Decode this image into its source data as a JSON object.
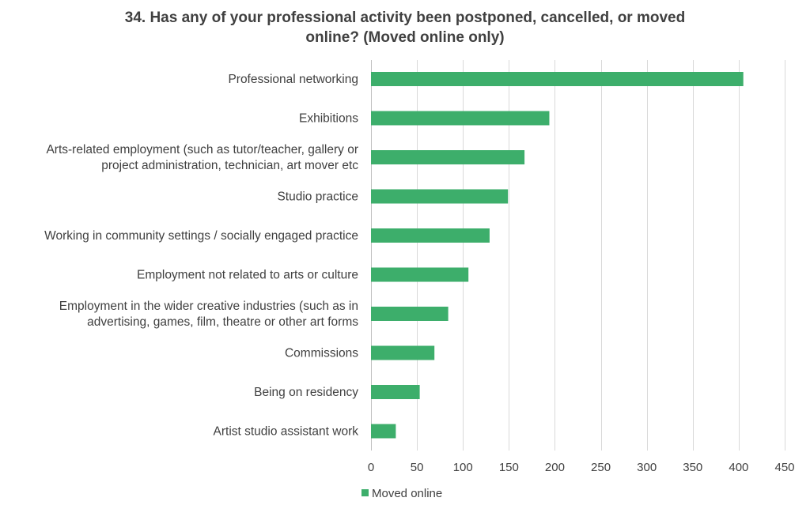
{
  "chart_data": {
    "type": "bar",
    "orientation": "horizontal",
    "title_lines": [
      "34. Has any of your professional activity been postponed, cancelled, or moved",
      "online? (Moved online only)"
    ],
    "categories": [
      [
        "Professional networking"
      ],
      [
        "Exhibitions"
      ],
      [
        "Arts-related employment (such as tutor/teacher, gallery or",
        "project administration, technician, art mover etc"
      ],
      [
        "Studio practice"
      ],
      [
        "Working in community settings / socially engaged practice"
      ],
      [
        "Employment not related to arts or culture"
      ],
      [
        "Employment in the wider creative industries (such as in",
        "advertising, games, film, theatre or other art forms"
      ],
      [
        "Commissions"
      ],
      [
        "Being on residency"
      ],
      [
        "Artist studio assistant work"
      ]
    ],
    "series": [
      {
        "name": "Moved online",
        "color": "#3dae6b",
        "values": [
          405,
          194,
          167,
          149,
          129,
          106,
          84,
          69,
          53,
          27
        ]
      }
    ],
    "xlim": [
      0,
      450
    ],
    "xticks": [
      0,
      50,
      100,
      150,
      200,
      250,
      300,
      350,
      400,
      450
    ],
    "xtick_labels": [
      "0",
      "50",
      "100",
      "150",
      "200",
      "250",
      "300",
      "350",
      "400",
      "450"
    ],
    "grid": "vertical",
    "gridline_color": "#d9d9d9",
    "legend_position": "bottom"
  }
}
